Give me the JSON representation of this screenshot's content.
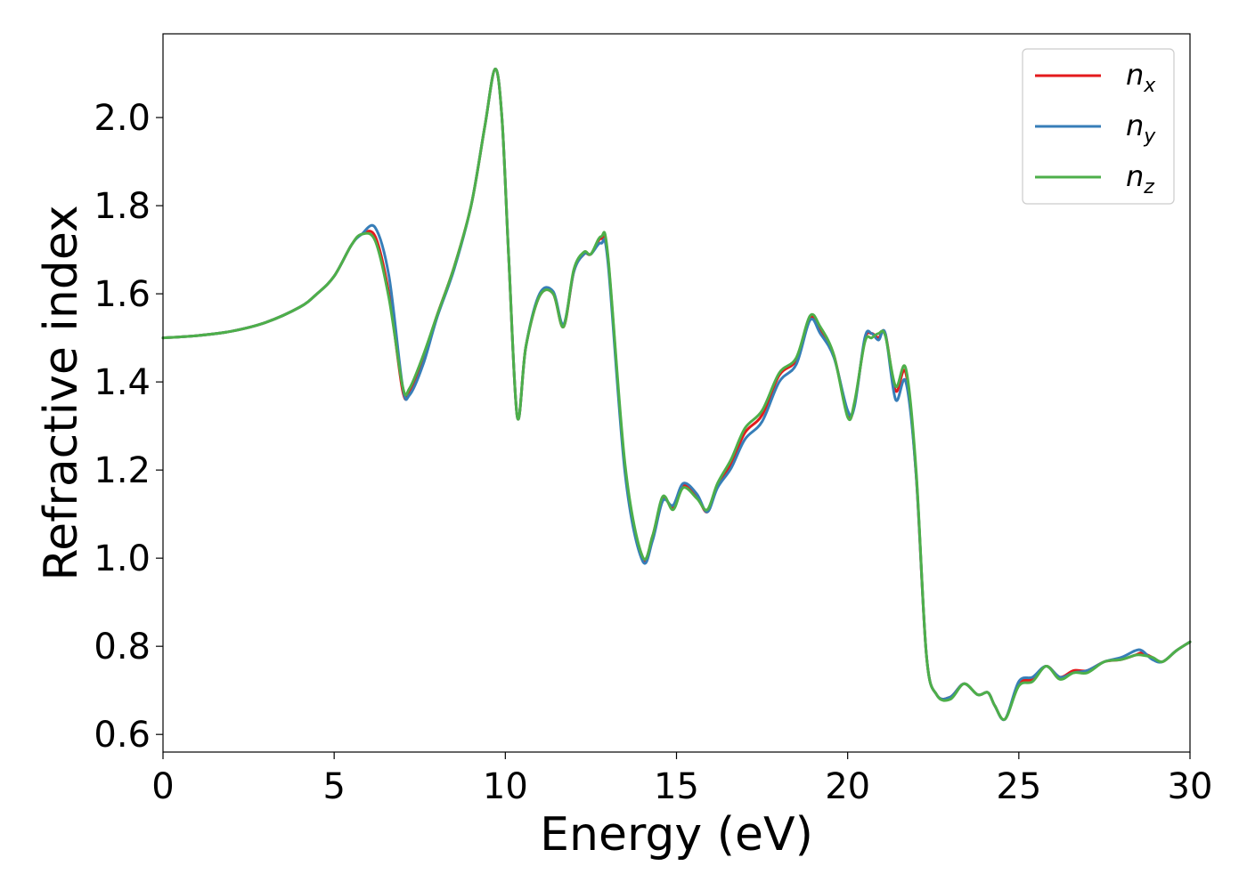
{
  "chart_data": {
    "type": "line",
    "xlabel": "Energy (eV)",
    "ylabel": "Refractive index",
    "xlim": [
      0,
      30
    ],
    "ylim": [
      0.56,
      2.19
    ],
    "xticks": [
      0,
      5,
      10,
      15,
      20,
      25,
      30
    ],
    "yticks": [
      0.6,
      0.8,
      1.0,
      1.2,
      1.4,
      1.6,
      1.8,
      2.0
    ],
    "grid": false,
    "legend_position": "top-right",
    "colors": {
      "n_x": "#e41a1c",
      "n_y": "#377eb8",
      "n_z": "#4daf4a"
    },
    "x": [
      0,
      1,
      2,
      3,
      4,
      4.5,
      5,
      5.5,
      5.8,
      6.2,
      6.6,
      7.0,
      7.2,
      7.6,
      8.0,
      8.5,
      9.0,
      9.4,
      9.7,
      9.9,
      10.1,
      10.35,
      10.6,
      11.0,
      11.4,
      11.7,
      12.0,
      12.3,
      12.5,
      12.8,
      13.0,
      13.5,
      14.0,
      14.3,
      14.6,
      14.9,
      15.2,
      15.6,
      15.9,
      16.2,
      16.6,
      17.0,
      17.5,
      18.0,
      18.5,
      18.9,
      19.2,
      19.6,
      20.0,
      20.2,
      20.5,
      20.7,
      20.9,
      21.1,
      21.4,
      21.7,
      22.0,
      22.3,
      22.6,
      23.0,
      23.4,
      23.8,
      24.1,
      24.3,
      24.6,
      25.0,
      25.4,
      25.8,
      26.2,
      26.6,
      27.0,
      27.5,
      28.0,
      28.4,
      28.6,
      28.9,
      29.2,
      29.6,
      30.0
    ],
    "series": [
      {
        "name": "n_x",
        "name_base": "n",
        "name_sub": "x",
        "values": [
          1.5,
          1.505,
          1.515,
          1.535,
          1.57,
          1.6,
          1.64,
          1.71,
          1.735,
          1.73,
          1.6,
          1.38,
          1.38,
          1.455,
          1.55,
          1.66,
          1.8,
          1.98,
          2.11,
          2.0,
          1.68,
          1.32,
          1.48,
          1.595,
          1.6,
          1.525,
          1.65,
          1.69,
          1.69,
          1.725,
          1.68,
          1.2,
          1.0,
          1.05,
          1.135,
          1.115,
          1.165,
          1.14,
          1.105,
          1.165,
          1.215,
          1.285,
          1.325,
          1.415,
          1.45,
          1.545,
          1.52,
          1.46,
          1.325,
          1.35,
          1.495,
          1.51,
          1.5,
          1.51,
          1.38,
          1.42,
          1.19,
          0.78,
          0.69,
          0.685,
          0.715,
          0.69,
          0.695,
          0.665,
          0.635,
          0.715,
          0.725,
          0.755,
          0.73,
          0.745,
          0.745,
          0.765,
          0.77,
          0.78,
          0.785,
          0.775,
          0.765,
          0.79,
          0.81
        ]
      },
      {
        "name": "n_y",
        "name_base": "n",
        "name_sub": "y",
        "values": [
          1.5,
          1.505,
          1.515,
          1.535,
          1.57,
          1.6,
          1.64,
          1.71,
          1.735,
          1.75,
          1.64,
          1.39,
          1.37,
          1.44,
          1.545,
          1.655,
          1.8,
          1.98,
          2.11,
          2.0,
          1.68,
          1.32,
          1.48,
          1.6,
          1.605,
          1.53,
          1.65,
          1.69,
          1.69,
          1.715,
          1.67,
          1.19,
          0.995,
          1.04,
          1.13,
          1.12,
          1.17,
          1.145,
          1.105,
          1.16,
          1.205,
          1.27,
          1.31,
          1.4,
          1.44,
          1.54,
          1.51,
          1.455,
          1.335,
          1.345,
          1.5,
          1.51,
          1.495,
          1.51,
          1.36,
          1.4,
          1.19,
          0.78,
          0.69,
          0.685,
          0.715,
          0.69,
          0.695,
          0.665,
          0.635,
          0.72,
          0.73,
          0.755,
          0.73,
          0.74,
          0.745,
          0.765,
          0.775,
          0.79,
          0.79,
          0.77,
          0.765,
          0.79,
          0.81
        ]
      },
      {
        "name": "n_z",
        "name_base": "n",
        "name_sub": "z",
        "values": [
          1.5,
          1.505,
          1.515,
          1.535,
          1.57,
          1.6,
          1.64,
          1.71,
          1.735,
          1.72,
          1.59,
          1.39,
          1.385,
          1.46,
          1.55,
          1.66,
          1.8,
          1.98,
          2.11,
          2.0,
          1.68,
          1.32,
          1.48,
          1.595,
          1.6,
          1.525,
          1.655,
          1.695,
          1.69,
          1.73,
          1.685,
          1.21,
          1.005,
          1.05,
          1.14,
          1.11,
          1.16,
          1.135,
          1.11,
          1.17,
          1.225,
          1.295,
          1.335,
          1.42,
          1.455,
          1.55,
          1.525,
          1.46,
          1.32,
          1.355,
          1.49,
          1.5,
          1.51,
          1.505,
          1.39,
          1.43,
          1.2,
          0.78,
          0.69,
          0.68,
          0.715,
          0.69,
          0.695,
          0.665,
          0.635,
          0.71,
          0.72,
          0.755,
          0.725,
          0.74,
          0.74,
          0.765,
          0.77,
          0.78,
          0.78,
          0.775,
          0.765,
          0.79,
          0.81
        ]
      }
    ]
  }
}
